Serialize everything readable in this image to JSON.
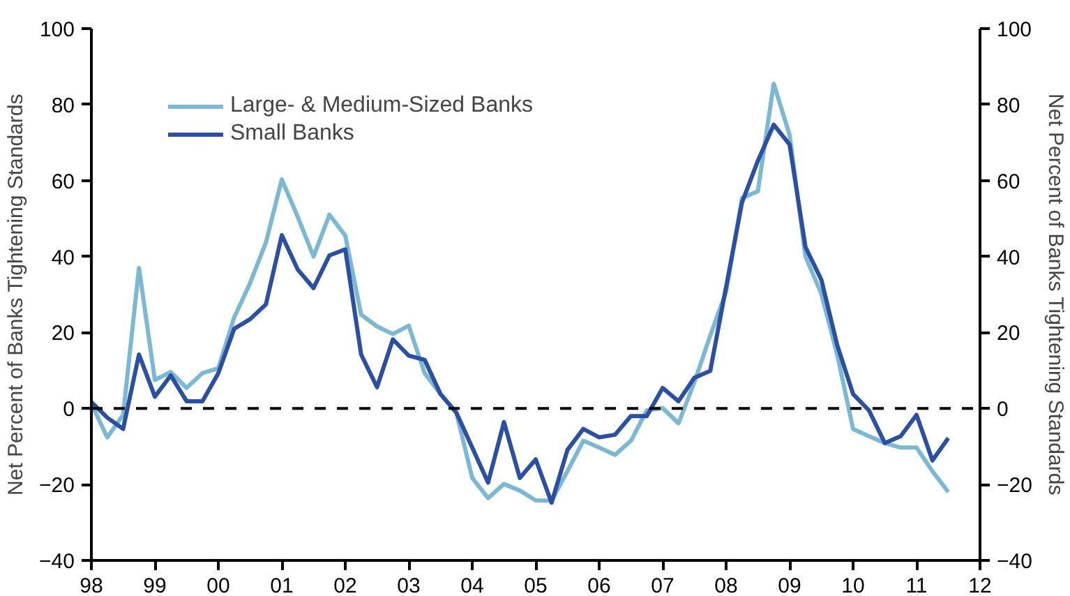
{
  "chart_data": {
    "type": "line",
    "x": [
      1998.0,
      1998.25,
      1998.5,
      1998.75,
      1999.0,
      1999.25,
      1999.5,
      1999.75,
      2000.0,
      2000.25,
      2000.5,
      2000.75,
      2001.0,
      2001.25,
      2001.5,
      2001.75,
      2002.0,
      2002.25,
      2002.5,
      2002.75,
      2003.0,
      2003.25,
      2003.5,
      2003.75,
      2004.0,
      2004.25,
      2004.5,
      2004.75,
      2005.0,
      2005.25,
      2005.5,
      2005.75,
      2006.0,
      2006.25,
      2006.5,
      2006.75,
      2007.0,
      2007.25,
      2007.5,
      2007.75,
      2008.0,
      2008.25,
      2008.5,
      2008.75,
      2009.0,
      2009.25,
      2009.5,
      2009.75,
      2010.0,
      2010.25,
      2010.5,
      2010.75,
      2011.0,
      2011.25,
      2011.5
    ],
    "series": [
      {
        "name": "Large- & Medium-Sized Banks",
        "color": "#7ab8d4",
        "values": [
          1.3,
          -7.6,
          -1.7,
          37,
          7.5,
          9.6,
          5.4,
          9.3,
          10.6,
          24,
          33,
          43.7,
          60.3,
          50.5,
          40,
          51,
          45.5,
          24.7,
          21.6,
          19.6,
          21.8,
          9.3,
          3.8,
          -1.1,
          -18.3,
          -23.6,
          -19.9,
          -21.6,
          -24.2,
          -24.3,
          -16.5,
          -8.5,
          -10.3,
          -12.2,
          -8.5,
          -0.5,
          0.1,
          -3.9,
          6.9,
          19.2,
          30.8,
          55.4,
          57.2,
          85.5,
          72,
          40,
          30.2,
          14.2,
          -5.4,
          -7.3,
          -9.1,
          -10.3,
          -10.3,
          -16.5,
          -22
        ]
      },
      {
        "name": "Small Banks",
        "color": "#2a4fa3",
        "values": [
          1.7,
          -2.4,
          -5.4,
          14.2,
          3.1,
          8.7,
          1.9,
          1.9,
          9.3,
          21,
          23.5,
          27.4,
          45.6,
          36.6,
          31.7,
          40.3,
          41.9,
          14.2,
          5.6,
          18.2,
          13.9,
          12.8,
          3.8,
          -1.1,
          -10.3,
          -19.5,
          -3.6,
          -18.3,
          -13.4,
          -24.8,
          -10.9,
          -5.4,
          -7.6,
          -6.9,
          -2,
          -2,
          5.4,
          1.9,
          8.1,
          9.9,
          32,
          54.2,
          65.2,
          74.7,
          69.5,
          42.5,
          33.9,
          16.7,
          3.8,
          -0.5,
          -9.1,
          -7.3,
          -1.7,
          -13.7,
          -7.8
        ]
      }
    ],
    "ylabel": "Net Percent of Banks Tightening Standards",
    "y2label": "Net Percent of Banks Tightening Standards",
    "xlim": [
      1998,
      2012
    ],
    "xticks": [
      {
        "value": 1998,
        "label": "98"
      },
      {
        "value": 1999,
        "label": "99"
      },
      {
        "value": 2000,
        "label": "00"
      },
      {
        "value": 2001,
        "label": "01"
      },
      {
        "value": 2002,
        "label": "02"
      },
      {
        "value": 2003,
        "label": "03"
      },
      {
        "value": 2004,
        "label": "04"
      },
      {
        "value": 2005,
        "label": "05"
      },
      {
        "value": 2006,
        "label": "06"
      },
      {
        "value": 2007,
        "label": "07"
      },
      {
        "value": 2008,
        "label": "08"
      },
      {
        "value": 2009,
        "label": "09"
      },
      {
        "value": 2010,
        "label": "10"
      },
      {
        "value": 2011,
        "label": "11"
      },
      {
        "value": 2012,
        "label": "12"
      }
    ],
    "ylim": [
      -40,
      100
    ],
    "yticks": [
      -40,
      -20,
      0,
      20,
      40,
      60,
      80,
      100
    ],
    "y2lim": [
      -40,
      100
    ],
    "y2ticks": [
      -40,
      -20,
      0,
      20,
      40,
      60,
      80,
      100
    ],
    "ref_lines": [
      {
        "axis": "y",
        "value": 0,
        "color": "#000000",
        "line_style": "dashed"
      }
    ],
    "grid": false,
    "legend": "top left",
    "line_style": "solid",
    "marker": "none"
  }
}
